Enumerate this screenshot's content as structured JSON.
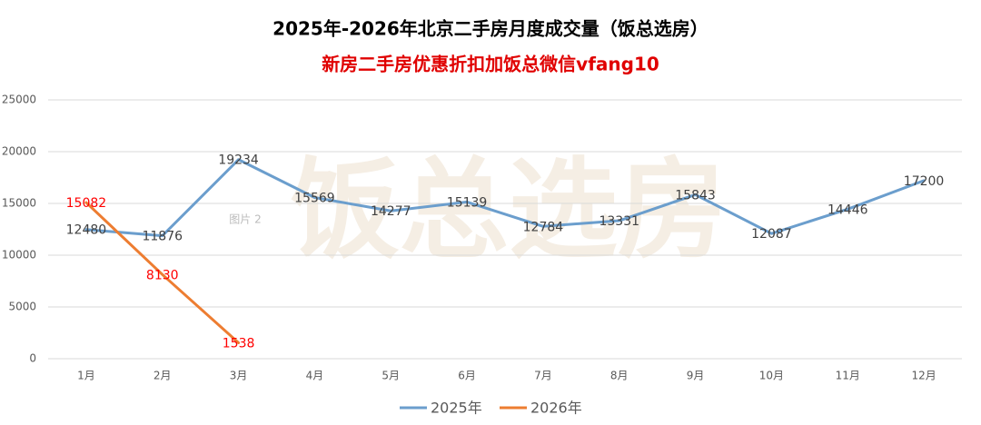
{
  "chart_data": {
    "type": "line",
    "title": "2025年-2026年北京二手房月度成交量（饭总选房）",
    "subtitle": "新房二手房优惠折扣加饭总微信vfang10",
    "watermark": "饭总选房",
    "annotation": "图片 2",
    "categories": [
      "1月",
      "2月",
      "3月",
      "4月",
      "5月",
      "6月",
      "7月",
      "8月",
      "9月",
      "10月",
      "11月",
      "12月"
    ],
    "series": [
      {
        "name": "2025年",
        "color": "#6b9ecd",
        "label_color": "#404040",
        "values": [
          12480,
          11876,
          19234,
          15569,
          14277,
          15139,
          12784,
          13331,
          15843,
          12087,
          14446,
          17200
        ]
      },
      {
        "name": "2026年",
        "color": "#ed7d31",
        "label_color": "#ff0000",
        "values": [
          15082,
          8130,
          1538,
          null,
          null,
          null,
          null,
          null,
          null,
          null,
          null,
          null
        ]
      }
    ],
    "ylim": [
      0,
      25000
    ],
    "yticks": [
      0,
      5000,
      10000,
      15000,
      20000,
      25000
    ],
    "grid": true,
    "legend": "bottom"
  }
}
